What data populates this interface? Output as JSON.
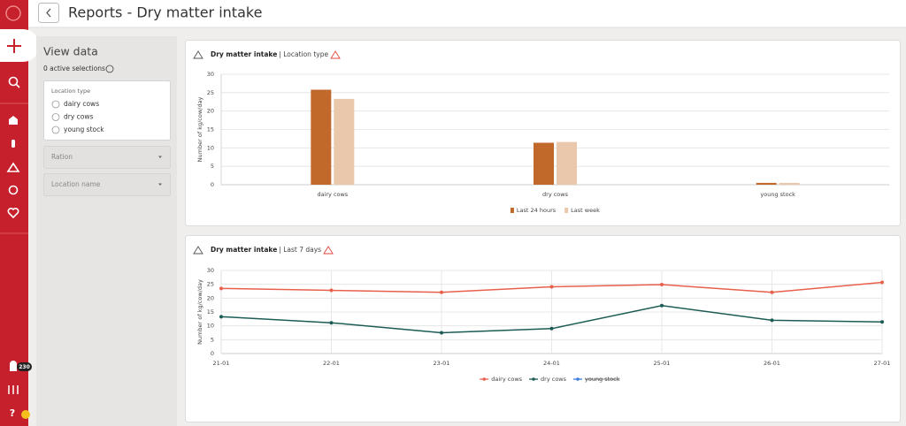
{
  "header": {
    "title": "Reports - Dry matter intake"
  },
  "sidebar": {
    "notifications": 230,
    "help": "?"
  },
  "filters": {
    "title": "View data",
    "selections": "0 active selections",
    "location_type": {
      "label": "Location type",
      "options": [
        "dairy cows",
        "dry cows",
        "young stock"
      ]
    },
    "dropdowns": [
      "Ration",
      "Location name"
    ]
  },
  "chart_data": [
    {
      "type": "bar",
      "title": "Dry matter intake",
      "subtitle": "| Location type",
      "ylabel": "Number of kg/cow/day",
      "categories": [
        "dairy cows",
        "dry cows",
        "young stock"
      ],
      "series": [
        {
          "name": "Last 24 hours",
          "color": "#c1692b",
          "values": [
            25.8,
            11.4,
            0.5
          ]
        },
        {
          "name": "Last week",
          "color": "#eac8ab",
          "values": [
            23.3,
            11.6,
            0.5
          ]
        }
      ],
      "ylim": [
        0,
        30
      ],
      "yticks": [
        0,
        5,
        10,
        15,
        20,
        25,
        30
      ],
      "grid": true,
      "legend": "bottom"
    },
    {
      "type": "line",
      "title": "Dry matter intake",
      "subtitle": "| Last 7 days",
      "ylabel": "Number of kg/cow/day",
      "categories": [
        "21-01",
        "22-01",
        "23-01",
        "24-01",
        "25-01",
        "26-01",
        "27-01"
      ],
      "series": [
        {
          "name": "dairy cows",
          "color": "#e8604c",
          "values": [
            23.5,
            22.8,
            22.1,
            24.1,
            24.9,
            22.1,
            25.7
          ]
        },
        {
          "name": "dry cows",
          "color": "#1c5c55",
          "values": [
            13.3,
            11.1,
            7.5,
            9.0,
            17.3,
            12.0,
            11.4
          ]
        },
        {
          "name": "young stock",
          "color": "#3b7de0",
          "hidden": true,
          "values": [
            null,
            null,
            null,
            null,
            null,
            null,
            null
          ]
        }
      ],
      "ylim": [
        0,
        30
      ],
      "yticks": [
        0,
        5,
        10,
        15,
        20,
        25,
        30
      ],
      "grid": true,
      "legend": "bottom"
    }
  ]
}
